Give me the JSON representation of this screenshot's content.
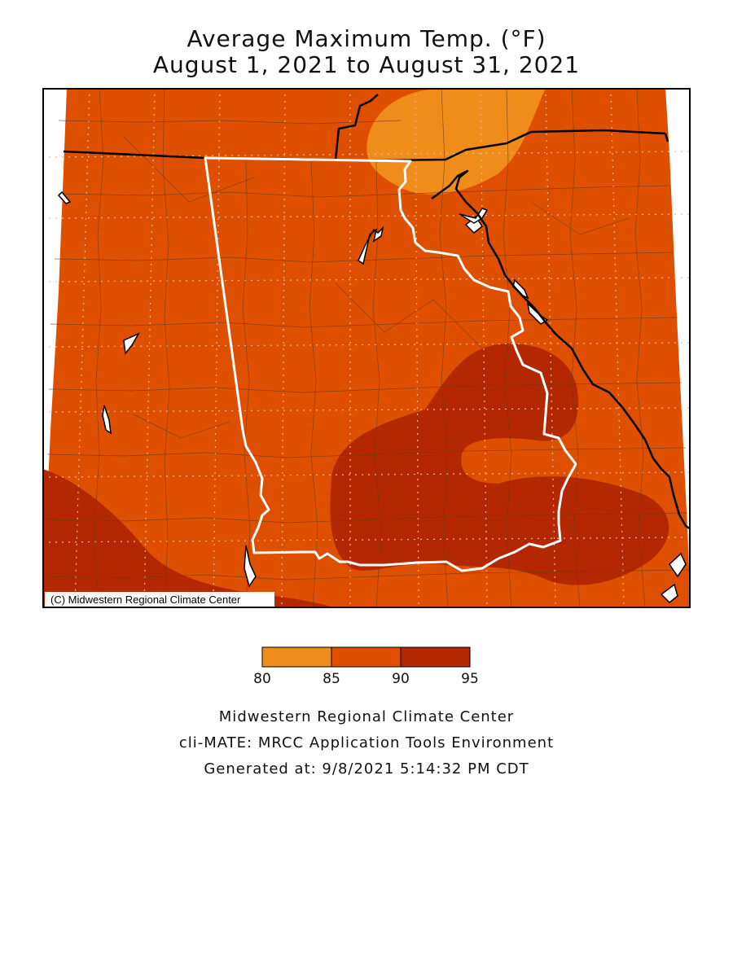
{
  "title_line1": "Average Maximum Temp. (°F)",
  "title_line2": "August 1, 2021 to August 31, 2021",
  "copyright": "(C) Midwestern Regional Climate Center",
  "legend": {
    "bins": [
      {
        "from": 80,
        "to": 85,
        "color": "#f08c1a"
      },
      {
        "from": 85,
        "to": 90,
        "color": "#de5000"
      },
      {
        "from": 90,
        "to": 95,
        "color": "#b32800"
      }
    ],
    "tick_labels": [
      "80",
      "85",
      "90",
      "95"
    ]
  },
  "colors": {
    "state_outline": "#ffffff",
    "state_borders": "#000000",
    "county_lines": "#6b3a1a",
    "grid": "#f2b89a",
    "water": "#ffffff"
  },
  "footer": {
    "line1": "Midwestern Regional Climate Center",
    "line2": "cli-MATE: MRCC Application Tools Environment",
    "line3": "Generated at: 9/8/2021 5:14:32 PM CDT"
  }
}
